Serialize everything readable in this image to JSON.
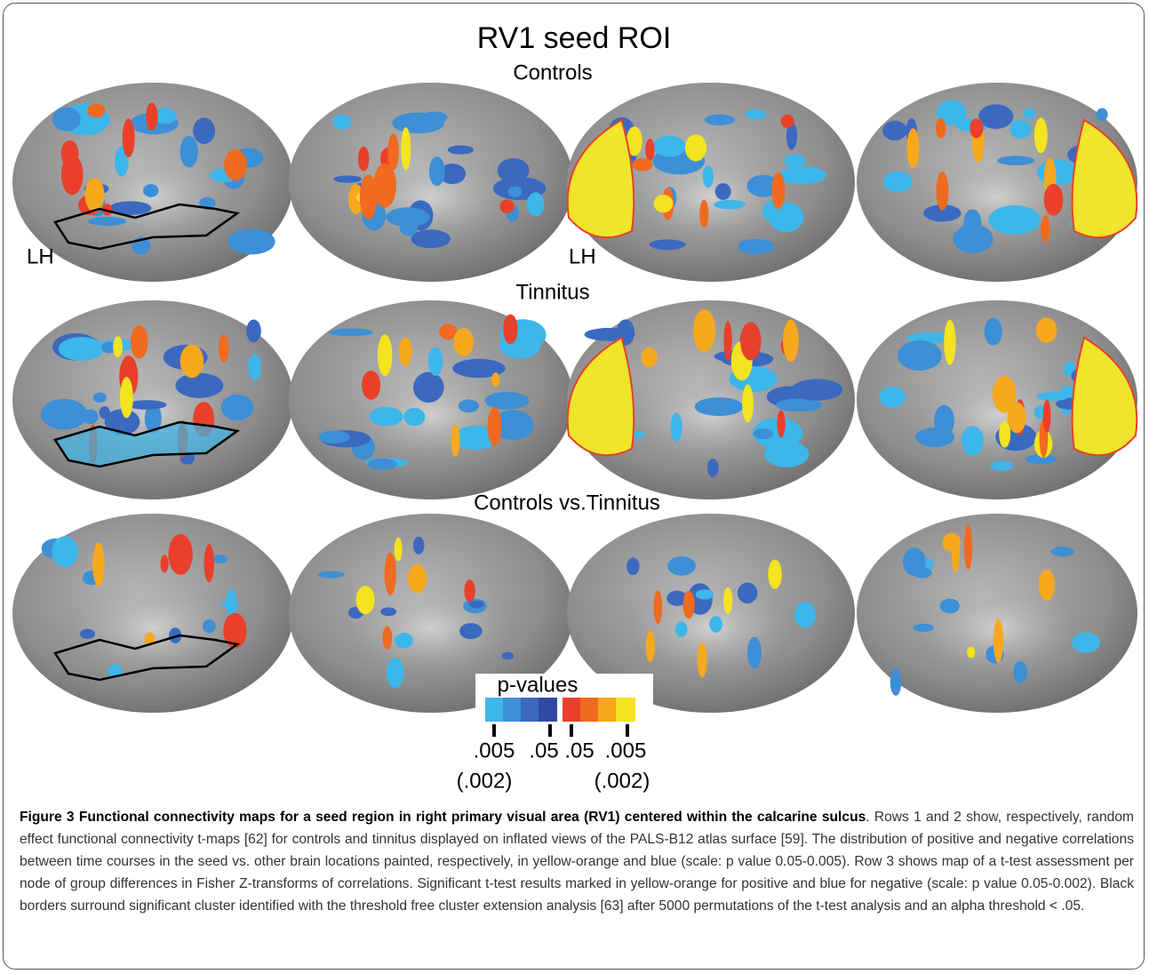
{
  "figure": {
    "title": "RV1 seed ROI",
    "rows": [
      {
        "label": "Controls"
      },
      {
        "label": "Tinnitus"
      },
      {
        "label": "Controls vs.Tinnitus"
      }
    ],
    "hemisphere_labels": [
      "LH",
      "LH"
    ],
    "legend": {
      "title": "p-values",
      "tick_labels": [
        ".005",
        ".05",
        ".05",
        ".005"
      ],
      "sub_labels": [
        "(.002)",
        "(.002)"
      ]
    }
  },
  "caption": {
    "label": "Figure 3",
    "title": "Functional connectivity maps for a seed region in right primary visual area (RV1) centered within the calcarine sulcus",
    "text": ". Rows 1 and 2 show, respectively, random effect functional connectivity t-maps [62] for controls and tinnitus displayed on inflated views of the PALS-B12 atlas surface [59]. The distribution of positive and negative correlations between time courses in the seed vs. other brain locations painted, respectively, in yellow-orange and blue (scale: p value 0.05-0.005). Row 3 shows map of a t-test assessment per node of group differences in Fisher Z-transforms of correlations. Significant t-test results marked in yellow-orange for positive and blue for negative (scale: p value 0.05-0.002). Black borders surround significant cluster identified with the threshold free cluster extension analysis [63] after 5000 permutations of the t-test analysis and an alpha threshold < .05."
  }
}
